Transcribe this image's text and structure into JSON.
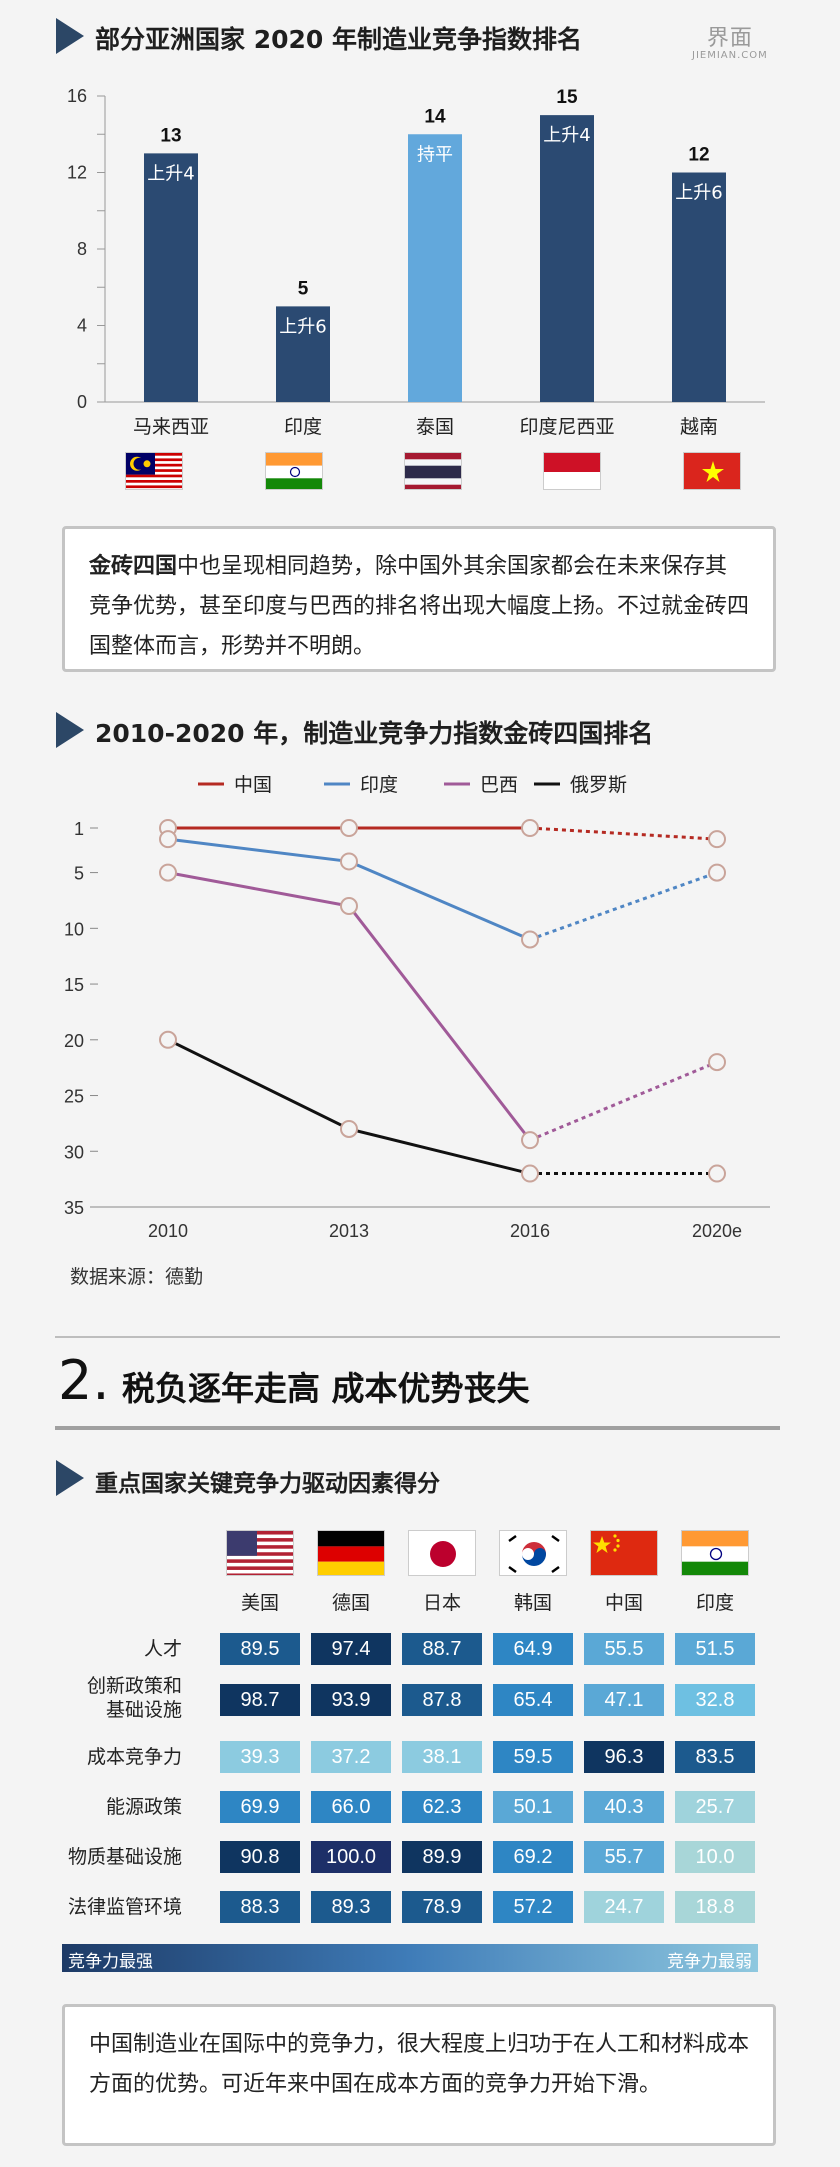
{
  "logo": {
    "mark": "界面",
    "sub": "JIEMIAN.COM"
  },
  "section1": {
    "title": "部分亚洲国家 2020 年制造业竞争指数排名"
  },
  "chart1": {
    "type": "bar",
    "title": "部分亚洲国家 2020 年制造业竞争指数排名",
    "categories": [
      "马来西亚",
      "印度",
      "泰国",
      "印度尼西亚",
      "越南"
    ],
    "values": [
      13,
      5,
      14,
      15,
      12
    ],
    "value_labels": [
      "13",
      "5",
      "14",
      "15",
      "12"
    ],
    "change_labels": [
      "上升4",
      "上升6",
      "持平",
      "上升4",
      "上升6"
    ],
    "colors": [
      "#2b4a72",
      "#2b4a72",
      "#62a8dc",
      "#2b4a72",
      "#2b4a72"
    ],
    "ylim": [
      0,
      16
    ],
    "yticks": [
      "0",
      "4",
      "8",
      "12",
      "16"
    ]
  },
  "box1": {
    "bold": "金砖四国",
    "text": "中也呈现相同趋势，除中国外其余国家都会在未来保存其竞争优势，甚至印度与巴西的排名将出现大幅度上扬。不过就金砖四国整体而言，形势并不明朗。"
  },
  "section2": {
    "title": "2010-2020 年，制造业竞争力指数金砖四国排名"
  },
  "chart2": {
    "type": "line",
    "title": "2010-2020 年，制造业竞争力指数金砖四国排名",
    "x": [
      "2010",
      "2013",
      "2016",
      "2020e"
    ],
    "ylim": [
      1,
      35
    ],
    "yticks": [
      "1",
      "5",
      "10",
      "15",
      "20",
      "25",
      "30",
      "35"
    ],
    "y_inverted": true,
    "series": [
      {
        "name": "中国",
        "values": [
          1,
          1,
          1,
          2
        ],
        "color": "#b52a22"
      },
      {
        "name": "印度",
        "values": [
          2,
          4,
          11,
          5
        ],
        "color": "#4f86c4"
      },
      {
        "name": "巴西",
        "values": [
          5,
          8,
          29,
          22
        ],
        "color": "#a05a98"
      },
      {
        "name": "俄罗斯",
        "values": [
          20,
          28,
          32,
          32
        ],
        "color": "#111111"
      }
    ],
    "projected_from_index": 2
  },
  "source": "数据来源：德勤",
  "section3": {
    "num": "2.",
    "title": "税负逐年走高 成本优势丧失"
  },
  "section4": {
    "title": "重点国家关键竞争力驱动因素得分"
  },
  "table": {
    "countries": [
      "美国",
      "德国",
      "日本",
      "韩国",
      "中国",
      "印度"
    ],
    "rows": [
      {
        "label": "人才",
        "values": [
          "89.5",
          "97.4",
          "88.7",
          "64.9",
          "55.5",
          "51.5"
        ],
        "colors": [
          "#1c5a8e",
          "#0f3560",
          "#1c5a8e",
          "#2e86c4",
          "#5aa8d6",
          "#5aa8d6"
        ]
      },
      {
        "label": "创新政策和\n基础设施",
        "values": [
          "98.7",
          "93.9",
          "87.8",
          "65.4",
          "47.1",
          "32.8"
        ],
        "colors": [
          "#0f3560",
          "#0f3560",
          "#1c5a8e",
          "#2e86c4",
          "#5aa8d6",
          "#6ec0e2"
        ]
      },
      {
        "label": "成本竞争力",
        "values": [
          "39.3",
          "37.2",
          "38.1",
          "59.5",
          "96.3",
          "83.5"
        ],
        "colors": [
          "#8ccbe0",
          "#8ccbe0",
          "#8ccbe0",
          "#2e86c4",
          "#0f3560",
          "#1c5a8e"
        ]
      },
      {
        "label": "能源政策",
        "values": [
          "69.9",
          "66.0",
          "62.3",
          "50.1",
          "40.3",
          "25.7"
        ],
        "colors": [
          "#2e86c4",
          "#2e86c4",
          "#2e86c4",
          "#5aa8d6",
          "#5aa8d6",
          "#9fd3dc"
        ]
      },
      {
        "label": "物质基础设施",
        "values": [
          "90.8",
          "100.0",
          "89.9",
          "69.2",
          "55.7",
          "10.0"
        ],
        "colors": [
          "#0f3560",
          "#1d2f68",
          "#0f3560",
          "#2e86c4",
          "#5aa8d6",
          "#a8d6d8"
        ]
      },
      {
        "label": "法律监管环境",
        "values": [
          "88.3",
          "89.3",
          "78.9",
          "57.2",
          "24.7",
          "18.8"
        ],
        "colors": [
          "#1c5a8e",
          "#1c5a8e",
          "#1c5a8e",
          "#2e86c4",
          "#9fd3dc",
          "#a8d6d8"
        ]
      }
    ],
    "legend_strong": "竞争力最强",
    "legend_weak": "竞争力最弱"
  },
  "box2": {
    "text": "中国制造业在国际中的竞争力，很大程度上归功于在人工和材料成本方面的优势。可近年来中国在成本方面的竞争力开始下滑。"
  }
}
